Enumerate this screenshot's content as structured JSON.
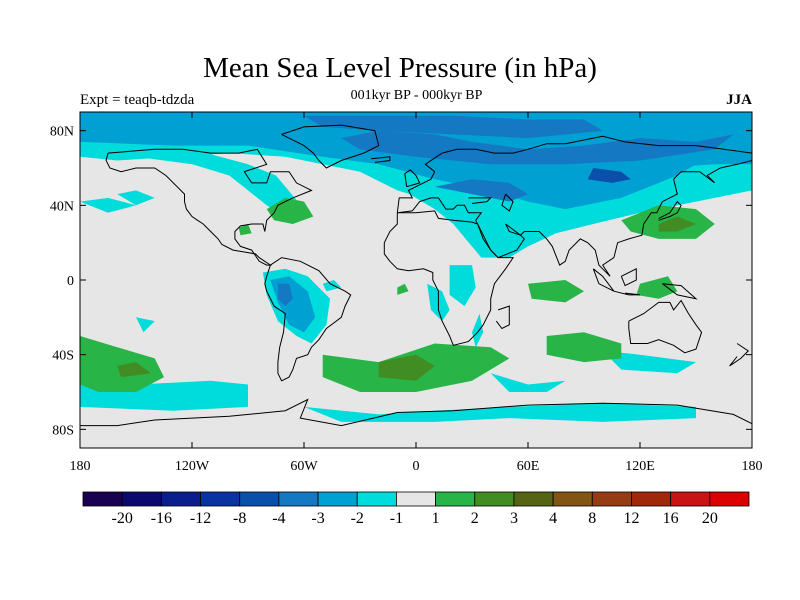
{
  "title": "Mean Sea Level Pressure (in hPa)",
  "experiment": "Expt = teaqb-tdzda",
  "period": "001kyr BP - 000kyr BP",
  "season": "JJA",
  "map": {
    "lon_range": [
      -180,
      180
    ],
    "lat_range": [
      -90,
      90
    ],
    "lat_ticks": [
      {
        "value": 80,
        "label": "80N"
      },
      {
        "value": 40,
        "label": "40N"
      },
      {
        "value": 0,
        "label": "0"
      },
      {
        "value": -40,
        "label": "40S"
      },
      {
        "value": -80,
        "label": "80S"
      }
    ],
    "lon_ticks": [
      {
        "value": -180,
        "label": "180"
      },
      {
        "value": -120,
        "label": "120W"
      },
      {
        "value": -60,
        "label": "60W"
      },
      {
        "value": 0,
        "label": "0"
      },
      {
        "value": 60,
        "label": "60E"
      },
      {
        "value": 120,
        "label": "120E"
      },
      {
        "value": 180,
        "label": "180"
      }
    ],
    "neutral_color": "#e6e6e6"
  },
  "colorbar": {
    "colors": [
      "#1a0050",
      "#0a0a6e",
      "#0a1e8c",
      "#0a32a0",
      "#0a50aa",
      "#1478c3",
      "#00a0d2",
      "#00dcdc",
      "#e6e6e6",
      "#28b446",
      "#418c23",
      "#556414",
      "#825514",
      "#963c14",
      "#a0280a",
      "#c81414",
      "#dc0000"
    ],
    "labels": [
      "-20",
      "-16",
      "-12",
      "-8",
      "-4",
      "-3",
      "-2",
      "-1",
      "1",
      "2",
      "3",
      "4",
      "8",
      "12",
      "16",
      "20"
    ]
  }
}
